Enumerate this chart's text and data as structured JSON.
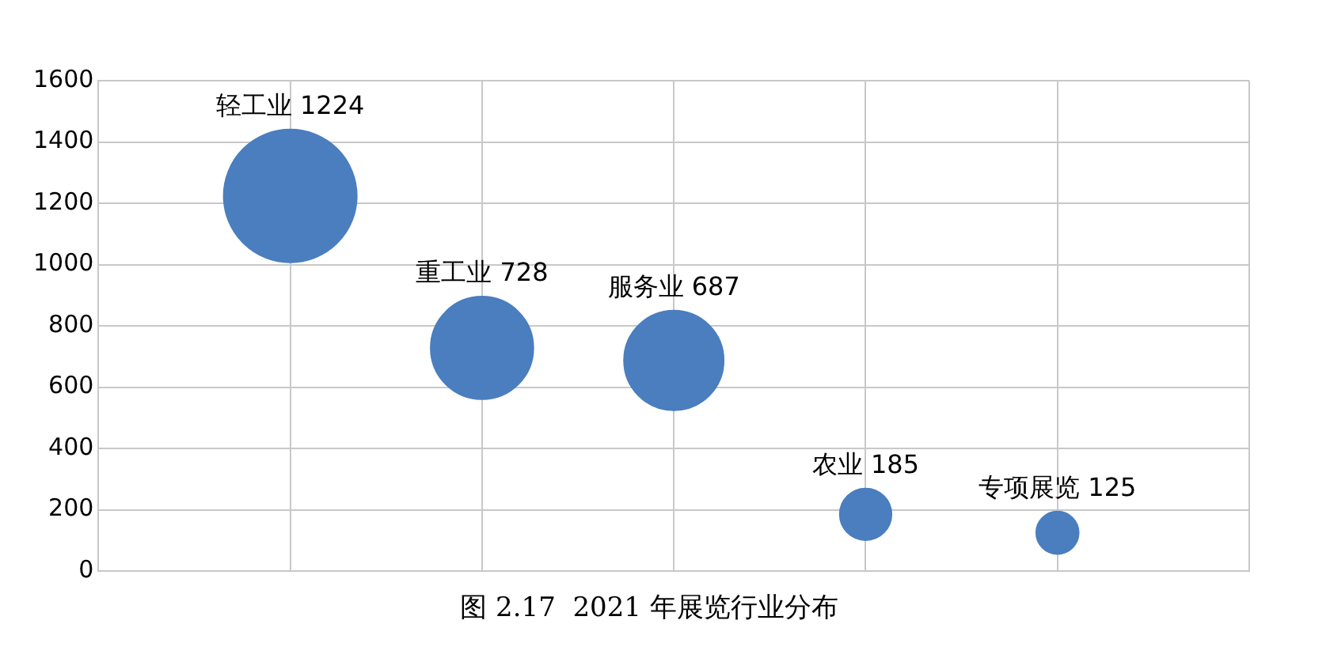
{
  "chart_data": {
    "type": "bubble",
    "title": "图 2.17  2021 年展览行业分布",
    "categories": [
      null,
      null,
      null,
      null,
      null
    ],
    "value_labels": [
      "轻工业 1224",
      "重工业 728",
      "服务业 687",
      "农业 185",
      "专项展览 125"
    ],
    "values": [
      1224,
      728,
      687,
      185,
      125
    ],
    "sizes": [
      1,
      0.595,
      0.561,
      0.151,
      0.102
    ],
    "color": "#4a7ebf",
    "ylim": [
      0,
      1600
    ],
    "yticks": [
      0,
      200,
      400,
      600,
      800,
      1000,
      1200,
      1400,
      1600
    ],
    "grid": true,
    "legend": false,
    "tick_labels": "y"
  }
}
